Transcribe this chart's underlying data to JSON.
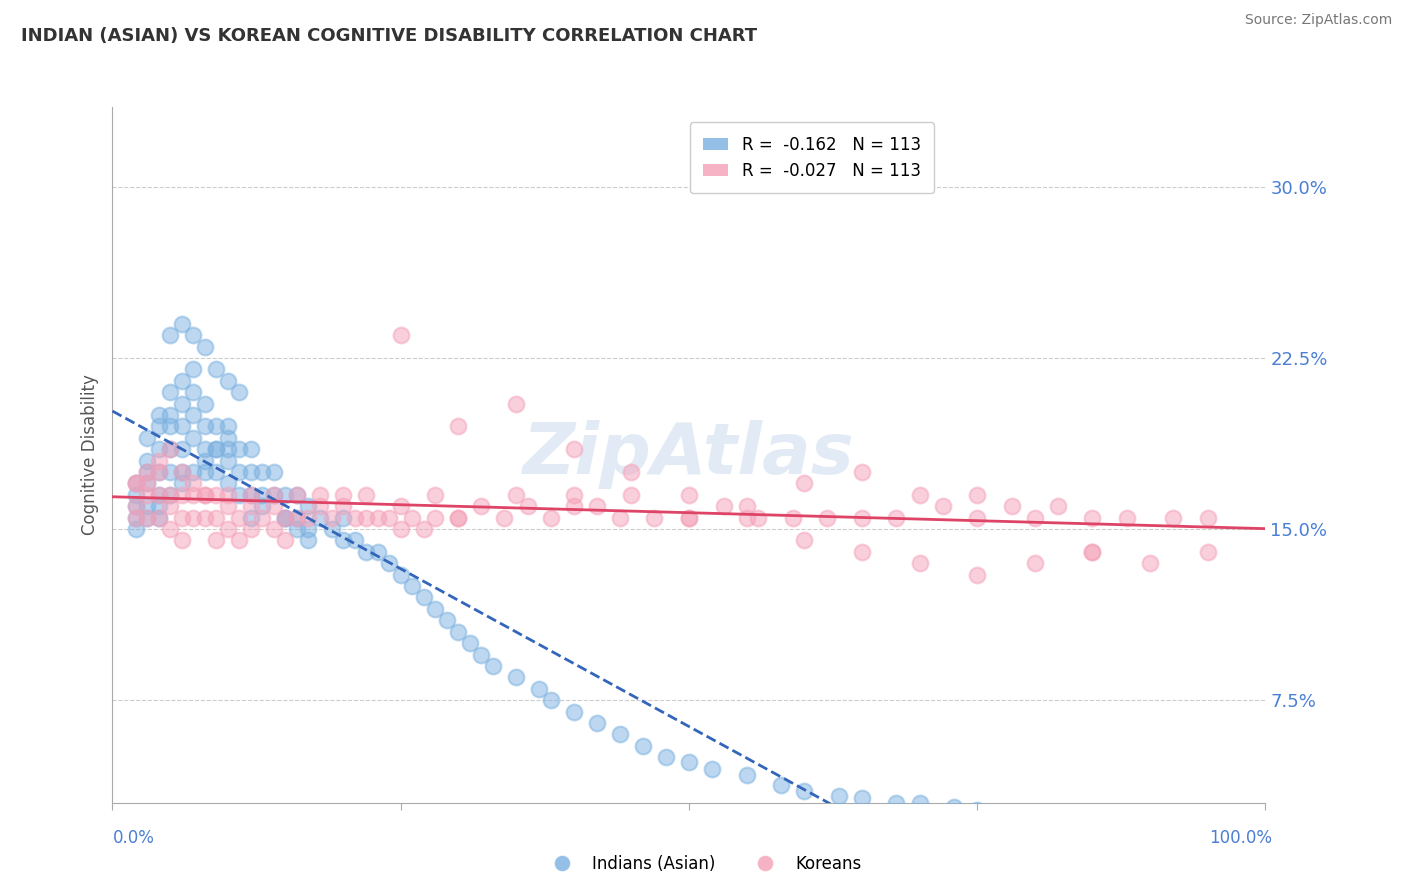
{
  "title": "INDIAN (ASIAN) VS KOREAN COGNITIVE DISABILITY CORRELATION CHART",
  "source": "Source: ZipAtlas.com",
  "ylabel": "Cognitive Disability",
  "ytick_vals": [
    0.075,
    0.15,
    0.225,
    0.3
  ],
  "ytick_labels": [
    "7.5%",
    "15.0%",
    "22.5%",
    "30.0%"
  ],
  "xlim": [
    0.0,
    1.0
  ],
  "ylim": [
    0.03,
    0.335
  ],
  "legend_entries": [
    {
      "label": "R =  -0.162   N = 113",
      "color": "#7ab0e0"
    },
    {
      "label": "R =  -0.027   N = 113",
      "color": "#f4a0b8"
    }
  ],
  "legend_bottom_labels": [
    "Indians (Asian)",
    "Koreans"
  ],
  "blue_color": "#7ab0e0",
  "pink_color": "#f4a0b8",
  "trend_blue_color": "#3366bb",
  "trend_pink_color": "#dd4466",
  "watermark": "ZipAtlas",
  "background_color": "#ffffff",
  "grid_color": "#cccccc",
  "axis_label_color": "#4a7fd4",
  "title_color": "#333333",
  "indian_x": [
    0.02,
    0.02,
    0.02,
    0.02,
    0.02,
    0.03,
    0.03,
    0.03,
    0.03,
    0.03,
    0.04,
    0.04,
    0.04,
    0.04,
    0.04,
    0.04,
    0.05,
    0.05,
    0.05,
    0.05,
    0.05,
    0.06,
    0.06,
    0.06,
    0.06,
    0.06,
    0.07,
    0.07,
    0.07,
    0.07,
    0.08,
    0.08,
    0.08,
    0.08,
    0.09,
    0.09,
    0.09,
    0.1,
    0.1,
    0.1,
    0.1,
    0.11,
    0.11,
    0.11,
    0.12,
    0.12,
    0.12,
    0.13,
    0.13,
    0.14,
    0.14,
    0.15,
    0.15,
    0.16,
    0.16,
    0.17,
    0.17,
    0.18,
    0.19,
    0.2,
    0.2,
    0.21,
    0.22,
    0.23,
    0.24,
    0.25,
    0.26,
    0.27,
    0.28,
    0.29,
    0.3,
    0.31,
    0.32,
    0.33,
    0.35,
    0.37,
    0.38,
    0.4,
    0.42,
    0.44,
    0.46,
    0.48,
    0.5,
    0.52,
    0.55,
    0.58,
    0.6,
    0.63,
    0.65,
    0.68,
    0.7,
    0.73,
    0.75,
    0.05,
    0.06,
    0.07,
    0.08,
    0.09,
    0.1,
    0.11,
    0.03,
    0.04,
    0.05,
    0.06,
    0.07,
    0.08,
    0.09,
    0.1,
    0.12,
    0.13,
    0.15,
    0.16,
    0.17
  ],
  "indian_y": [
    0.165,
    0.155,
    0.17,
    0.16,
    0.15,
    0.19,
    0.18,
    0.17,
    0.16,
    0.175,
    0.2,
    0.195,
    0.185,
    0.175,
    0.165,
    0.155,
    0.21,
    0.2,
    0.195,
    0.185,
    0.175,
    0.215,
    0.205,
    0.195,
    0.185,
    0.175,
    0.22,
    0.21,
    0.2,
    0.19,
    0.205,
    0.195,
    0.185,
    0.175,
    0.195,
    0.185,
    0.175,
    0.195,
    0.185,
    0.18,
    0.17,
    0.185,
    0.175,
    0.165,
    0.185,
    0.175,
    0.165,
    0.175,
    0.165,
    0.175,
    0.165,
    0.165,
    0.155,
    0.165,
    0.155,
    0.16,
    0.15,
    0.155,
    0.15,
    0.155,
    0.145,
    0.145,
    0.14,
    0.14,
    0.135,
    0.13,
    0.125,
    0.12,
    0.115,
    0.11,
    0.105,
    0.1,
    0.095,
    0.09,
    0.085,
    0.08,
    0.075,
    0.07,
    0.065,
    0.06,
    0.055,
    0.05,
    0.048,
    0.045,
    0.042,
    0.038,
    0.035,
    0.033,
    0.032,
    0.03,
    0.03,
    0.028,
    0.027,
    0.235,
    0.24,
    0.235,
    0.23,
    0.22,
    0.215,
    0.21,
    0.155,
    0.16,
    0.165,
    0.17,
    0.175,
    0.18,
    0.185,
    0.19,
    0.155,
    0.16,
    0.155,
    0.15,
    0.145
  ],
  "korean_x": [
    0.02,
    0.02,
    0.02,
    0.03,
    0.03,
    0.03,
    0.04,
    0.04,
    0.04,
    0.05,
    0.05,
    0.05,
    0.06,
    0.06,
    0.06,
    0.07,
    0.07,
    0.08,
    0.08,
    0.09,
    0.09,
    0.1,
    0.1,
    0.11,
    0.11,
    0.12,
    0.12,
    0.13,
    0.14,
    0.14,
    0.15,
    0.15,
    0.16,
    0.17,
    0.18,
    0.19,
    0.2,
    0.21,
    0.22,
    0.23,
    0.24,
    0.25,
    0.26,
    0.27,
    0.28,
    0.3,
    0.32,
    0.34,
    0.36,
    0.38,
    0.4,
    0.42,
    0.44,
    0.47,
    0.5,
    0.53,
    0.56,
    0.59,
    0.62,
    0.65,
    0.68,
    0.72,
    0.75,
    0.78,
    0.82,
    0.85,
    0.88,
    0.92,
    0.95,
    0.02,
    0.03,
    0.04,
    0.05,
    0.06,
    0.07,
    0.08,
    0.09,
    0.1,
    0.12,
    0.14,
    0.16,
    0.18,
    0.2,
    0.22,
    0.25,
    0.28,
    0.3,
    0.35,
    0.4,
    0.45,
    0.5,
    0.55,
    0.6,
    0.65,
    0.7,
    0.75,
    0.8,
    0.85,
    0.9,
    0.95,
    0.25,
    0.3,
    0.35,
    0.4,
    0.45,
    0.5,
    0.55,
    0.6,
    0.65,
    0.7,
    0.75,
    0.8,
    0.85
  ],
  "korean_y": [
    0.17,
    0.16,
    0.155,
    0.17,
    0.165,
    0.155,
    0.175,
    0.165,
    0.155,
    0.165,
    0.16,
    0.15,
    0.165,
    0.155,
    0.145,
    0.165,
    0.155,
    0.165,
    0.155,
    0.155,
    0.145,
    0.16,
    0.15,
    0.155,
    0.145,
    0.16,
    0.15,
    0.155,
    0.16,
    0.15,
    0.155,
    0.145,
    0.155,
    0.155,
    0.16,
    0.155,
    0.16,
    0.155,
    0.155,
    0.155,
    0.155,
    0.15,
    0.155,
    0.15,
    0.155,
    0.155,
    0.16,
    0.155,
    0.16,
    0.155,
    0.16,
    0.16,
    0.155,
    0.155,
    0.155,
    0.16,
    0.155,
    0.155,
    0.155,
    0.155,
    0.155,
    0.16,
    0.155,
    0.16,
    0.16,
    0.155,
    0.155,
    0.155,
    0.155,
    0.17,
    0.175,
    0.18,
    0.185,
    0.175,
    0.17,
    0.165,
    0.165,
    0.165,
    0.165,
    0.165,
    0.165,
    0.165,
    0.165,
    0.165,
    0.16,
    0.165,
    0.155,
    0.165,
    0.165,
    0.165,
    0.155,
    0.16,
    0.17,
    0.175,
    0.165,
    0.165,
    0.155,
    0.14,
    0.135,
    0.14,
    0.235,
    0.195,
    0.205,
    0.185,
    0.175,
    0.165,
    0.155,
    0.145,
    0.14,
    0.135,
    0.13,
    0.135,
    0.14
  ]
}
